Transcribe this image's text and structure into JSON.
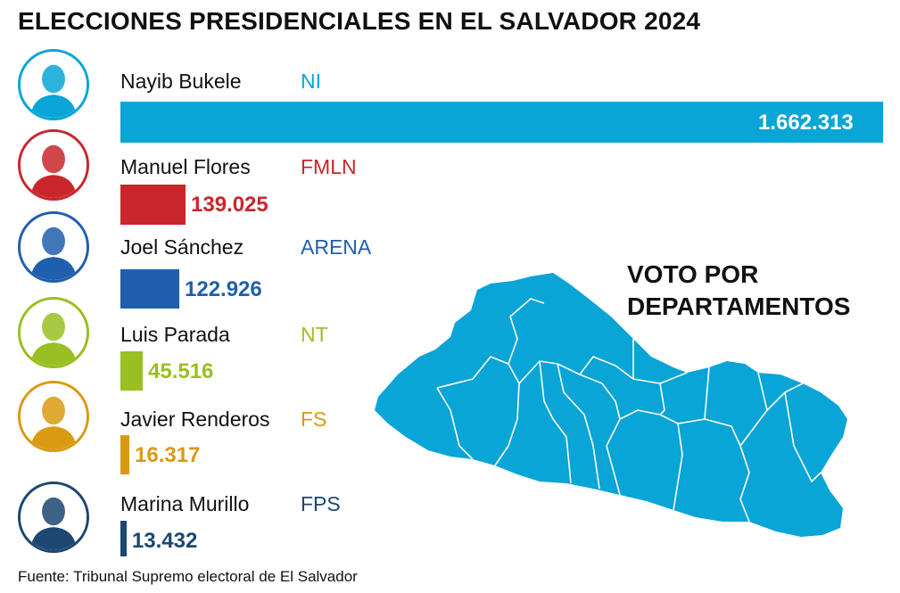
{
  "title": "ELECCIONES PRESIDENCIALES EN EL SALVADOR 2024",
  "chart_data": {
    "type": "bar",
    "orientation": "horizontal",
    "title": "ELECCIONES PRESIDENCIALES EN EL SALVADOR 2024",
    "xlim": [
      0,
      1662313
    ],
    "grid": false,
    "series": [
      {
        "candidate": "Nayib Bukele",
        "party": "NI",
        "value": 1662313,
        "label": "1.662.313",
        "color": "#08a5d6",
        "avatar_icon": "candidate-portrait-icon"
      },
      {
        "candidate": "Manuel Flores",
        "party": "FMLN",
        "value": 139025,
        "label": "139.025",
        "color": "#c9262c",
        "avatar_icon": "candidate-portrait-icon"
      },
      {
        "candidate": "Joel Sánchez",
        "party": "ARENA",
        "value": 122926,
        "label": "122.926",
        "color": "#1f5fad",
        "avatar_icon": "candidate-portrait-icon"
      },
      {
        "candidate": "Luis Parada",
        "party": "NT",
        "value": 45516,
        "label": "45.516",
        "color": "#99bf22",
        "avatar_icon": "candidate-portrait-icon"
      },
      {
        "candidate": "Javier Renderos",
        "party": "FS",
        "value": 16317,
        "label": "16.317",
        "color": "#d99a12",
        "avatar_icon": "candidate-portrait-icon"
      },
      {
        "candidate": "Marina Murillo",
        "party": "FPS",
        "value": 13432,
        "label": "13.432",
        "color": "#1b4770",
        "avatar_icon": "candidate-portrait-icon"
      }
    ]
  },
  "map": {
    "title_line1": "VOTO POR",
    "title_line2": "DEPARTAMENTOS",
    "fill_color": "#08a5d6",
    "border_color": "#ffffff"
  },
  "source": "Fuente: Tribunal Supremo electoral de El Salvador"
}
